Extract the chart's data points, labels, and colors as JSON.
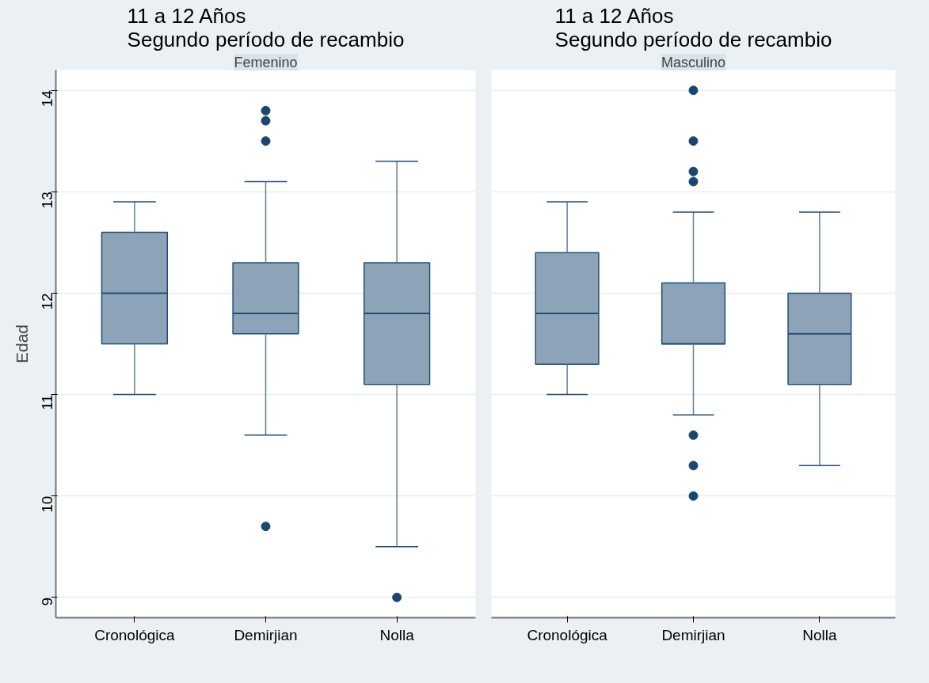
{
  "chart_data": [
    {
      "type": "box",
      "title": "11 a 12 Años\nSegundo período de recambio",
      "subtitle": "Femenino",
      "ylabel": "Edad",
      "categories": [
        "Cronológica",
        "Demirjian",
        "Nolla"
      ],
      "color": "#8da4b8",
      "ylim": [
        8.8,
        14.2
      ],
      "yticks": [
        9,
        10,
        11,
        12,
        13,
        14
      ],
      "grid": "y",
      "boxes": [
        {
          "low": 11.0,
          "q1": 11.5,
          "median": 12.0,
          "q3": 12.6,
          "high": 12.9
        },
        {
          "low": 10.6,
          "q1": 11.6,
          "median": 11.8,
          "q3": 12.3,
          "high": 13.1,
          "outliers": [
            13.8,
            13.7,
            13.5,
            9.7
          ]
        },
        {
          "low": 9.5,
          "q1": 11.1,
          "median": 11.8,
          "q3": 12.3,
          "high": 13.3,
          "outliers": [
            9.0
          ]
        }
      ]
    },
    {
      "type": "box",
      "title": "11 a 12 Años\nSegundo período de recambio",
      "subtitle": "Masculino",
      "categories": [
        "Cronológica",
        "Demirjian",
        "Nolla"
      ],
      "color": "#8da4b8",
      "ylim": [
        8.8,
        14.2
      ],
      "yticks": [
        9,
        10,
        11,
        12,
        13,
        14
      ],
      "grid": "y",
      "tick_labels": "x",
      "boxes": [
        {
          "low": 11.0,
          "q1": 11.3,
          "median": 11.8,
          "q3": 12.4,
          "high": 12.9
        },
        {
          "low": 10.8,
          "q1": 11.5,
          "median": 11.5,
          "q3": 12.1,
          "high": 12.8,
          "outliers": [
            14.0,
            13.5,
            13.2,
            13.1,
            10.6,
            10.3,
            10.0
          ]
        },
        {
          "low": 10.3,
          "q1": 11.1,
          "median": 11.6,
          "q3": 12.0,
          "high": 12.8
        }
      ]
    }
  ]
}
